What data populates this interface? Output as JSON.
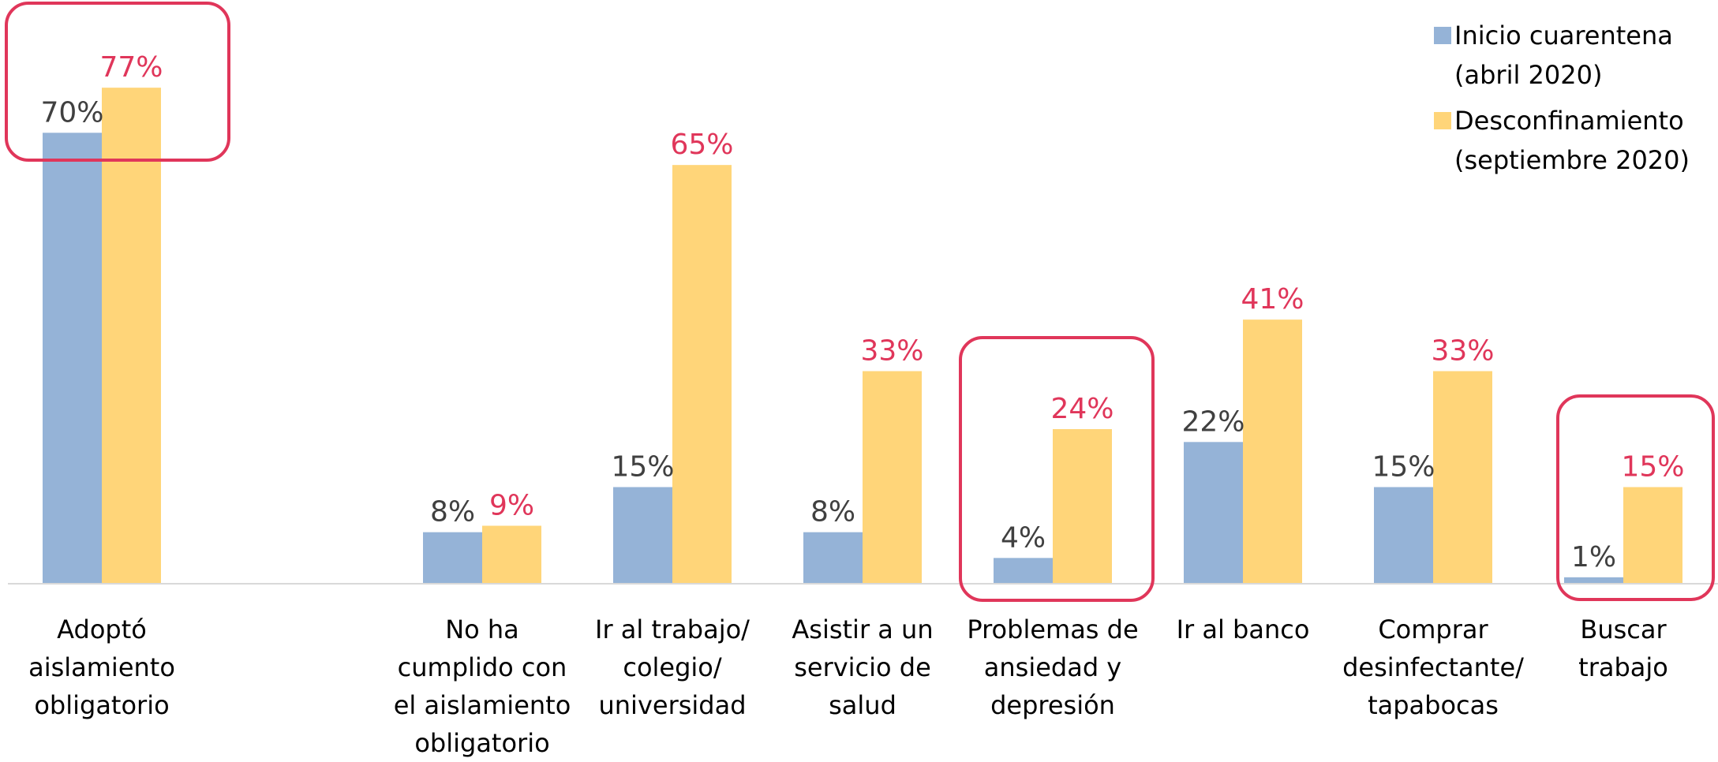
{
  "chart_data": {
    "type": "bar",
    "categories": [
      "Adoptó\naislamiento\nobligatorio",
      null,
      "No ha\ncumplido con\nel aislamiento\nobligatorio",
      "Ir al trabajo/\ncolegio/\nuniversidad",
      "Asistir a un\nservicio de\nsalud",
      "Problemas de\nansiedad y\ndepresión",
      "Ir al banco",
      "Comprar\ndesinfectante/\ntapabocas",
      "Buscar\ntrabajo"
    ],
    "series": [
      {
        "name": "Inicio cuarentena (abril 2020)",
        "color": "#95b3d7",
        "label_color": "#404040",
        "values": [
          70,
          null,
          8,
          15,
          8,
          4,
          22,
          15,
          1
        ],
        "value_labels": [
          "70%",
          null,
          "8%",
          "15%",
          "8%",
          "4%",
          "22%",
          "15%",
          "1%"
        ]
      },
      {
        "name": "Desconfinamiento (septiembre 2020)",
        "color": "#ffd579",
        "label_color": "#e0365a",
        "values": [
          77,
          null,
          9,
          65,
          33,
          24,
          41,
          33,
          15
        ],
        "value_labels": [
          "77%",
          null,
          "9%",
          "65%",
          "33%",
          "24%",
          "41%",
          "33%",
          "15%"
        ]
      }
    ],
    "ylim": [
      0,
      90
    ],
    "legend": "top-right"
  }
}
